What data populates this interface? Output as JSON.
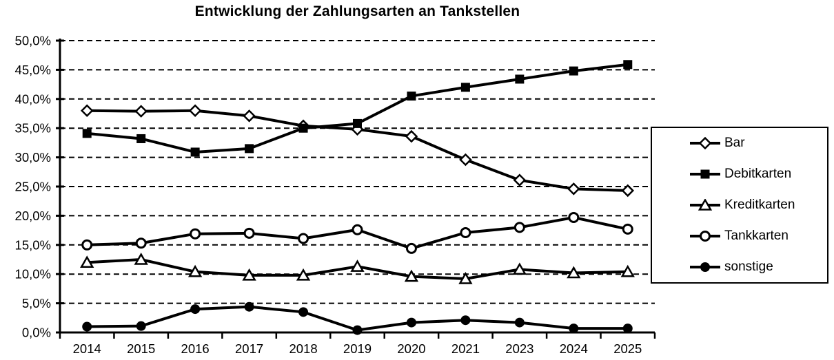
{
  "title": "Entwicklung der Zahlungsarten an Tankstellen",
  "colors": {
    "line": "#000000",
    "background": "#ffffff",
    "marker_fill_open": "#ffffff"
  },
  "chart_data": {
    "type": "line",
    "title": "Entwicklung der Zahlungsarten an Tankstellen",
    "categories": [
      "2014",
      "2015",
      "2016",
      "2017",
      "2018",
      "2019",
      "2020",
      "2021",
      "2023",
      "2024",
      "2025"
    ],
    "series": [
      {
        "name": "Bar",
        "marker": "diamond-open",
        "values": [
          38.0,
          37.9,
          38.0,
          37.1,
          35.4,
          34.8,
          33.6,
          29.6,
          26.1,
          24.6,
          24.3
        ]
      },
      {
        "name": "Debitkarten",
        "marker": "square-filled",
        "values": [
          34.1,
          33.2,
          30.9,
          31.5,
          35.0,
          35.8,
          40.5,
          42.0,
          43.4,
          44.8,
          45.9
        ]
      },
      {
        "name": "Kreditkarten",
        "marker": "triangle-open",
        "values": [
          12.0,
          12.5,
          10.4,
          9.8,
          9.8,
          11.3,
          9.6,
          9.2,
          10.8,
          10.2,
          10.4
        ]
      },
      {
        "name": "Tankkarten",
        "marker": "circle-open",
        "values": [
          15.0,
          15.3,
          16.9,
          17.0,
          16.1,
          17.6,
          14.4,
          17.1,
          18.0,
          19.7,
          17.7
        ]
      },
      {
        "name": "sonstige",
        "marker": "circle-filled",
        "values": [
          1.0,
          1.1,
          4.0,
          4.4,
          3.5,
          0.4,
          1.7,
          2.1,
          1.7,
          0.7,
          0.7
        ]
      }
    ],
    "xlabel": "",
    "ylabel": "",
    "ylim": [
      0,
      50
    ],
    "ytick_step": 5,
    "ytick_labels": [
      "0,0%",
      "5,0%",
      "10,0%",
      "15,0%",
      "20,0%",
      "25,0%",
      "30,0%",
      "35,0%",
      "40,0%",
      "45,0%",
      "50,0%"
    ],
    "grid": "horizontal-dashed",
    "legend_position": "right"
  }
}
